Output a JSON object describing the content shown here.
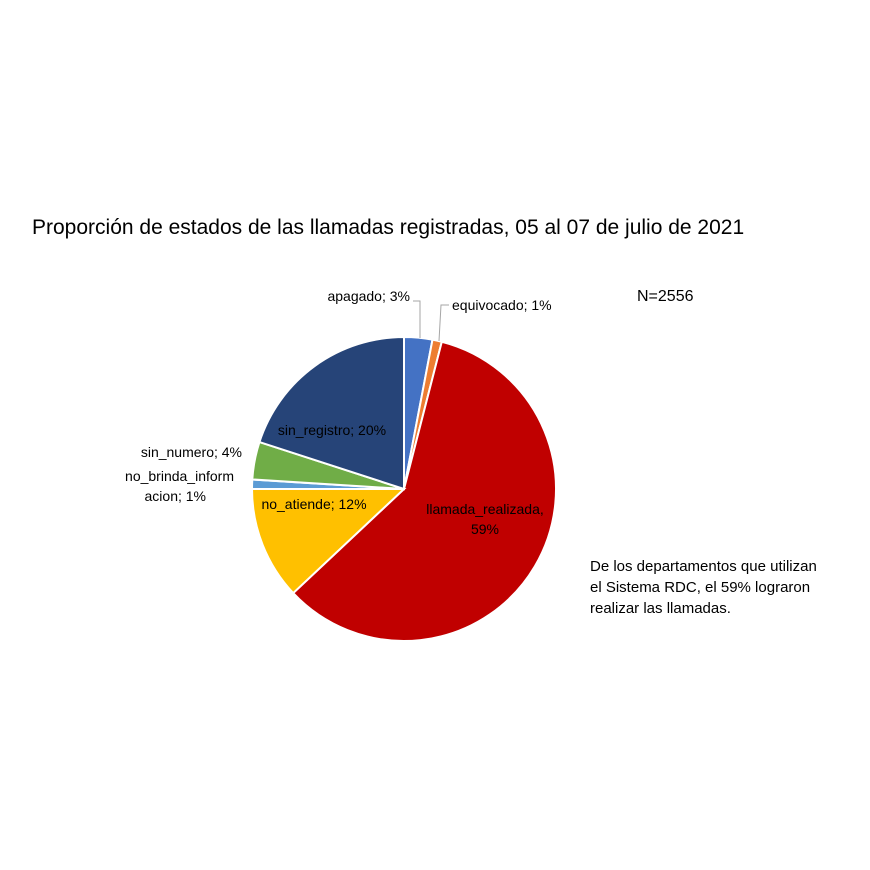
{
  "chart_data": {
    "type": "pie",
    "title": "Proporción de estados de las llamadas registradas, 05 al 07 de julio de 2021",
    "annotation": "N=2556",
    "note_lines": [
      "De los departamentos que utilizan",
      "el Sistema RDC, el 59% lograron",
      "realizar las llamadas."
    ],
    "slices": [
      {
        "name": "apagado",
        "value": 3,
        "color": "#4472C4",
        "label_lines": [
          "apagado; 3%"
        ]
      },
      {
        "name": "equivocado",
        "value": 1,
        "color": "#ED7D31",
        "label_lines": [
          "equivocado; 1%"
        ]
      },
      {
        "name": "llamada_realizada",
        "value": 59,
        "color": "#C00000",
        "label_lines": [
          "llamada_realizada,",
          "59%"
        ]
      },
      {
        "name": "no_atiende",
        "value": 12,
        "color": "#FFC000",
        "label_lines": [
          "no_atiende; 12%"
        ]
      },
      {
        "name": "no_brinda_informacion",
        "value": 1,
        "color": "#5B9BD5",
        "label_lines": [
          "no_brinda_inform",
          "acion; 1%"
        ]
      },
      {
        "name": "sin_numero",
        "value": 4,
        "color": "#70AD47",
        "label_lines": [
          "sin_numero; 4%"
        ]
      },
      {
        "name": "sin_registro",
        "value": 20,
        "color": "#264478",
        "label_lines": [
          "sin_registro; 20%"
        ]
      }
    ]
  }
}
